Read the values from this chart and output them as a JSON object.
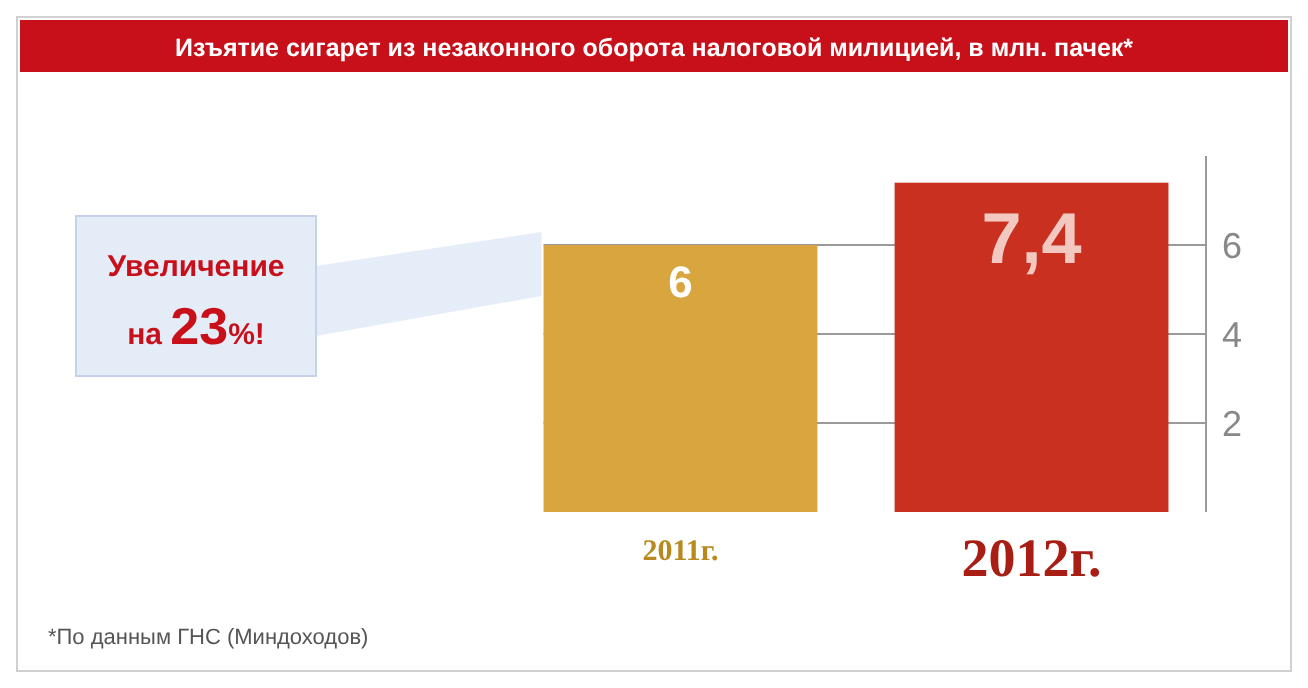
{
  "chart_data": {
    "type": "bar",
    "title": "Изъятие сигарет из незаконного оборота налоговой милицией, в млн. пачек*",
    "categories": [
      "2011г.",
      "2012г."
    ],
    "values": [
      6,
      7.4
    ],
    "colors": [
      "#d9a53f",
      "#c9301f"
    ],
    "value_labels": [
      "6",
      "7,4"
    ],
    "ylim": [
      0,
      8
    ],
    "yticks": [
      2,
      4,
      6
    ],
    "grid": "y",
    "annotations": [
      "Увеличение на 23%!",
      "*По данным ГНС (Миндоходов)"
    ]
  }
}
